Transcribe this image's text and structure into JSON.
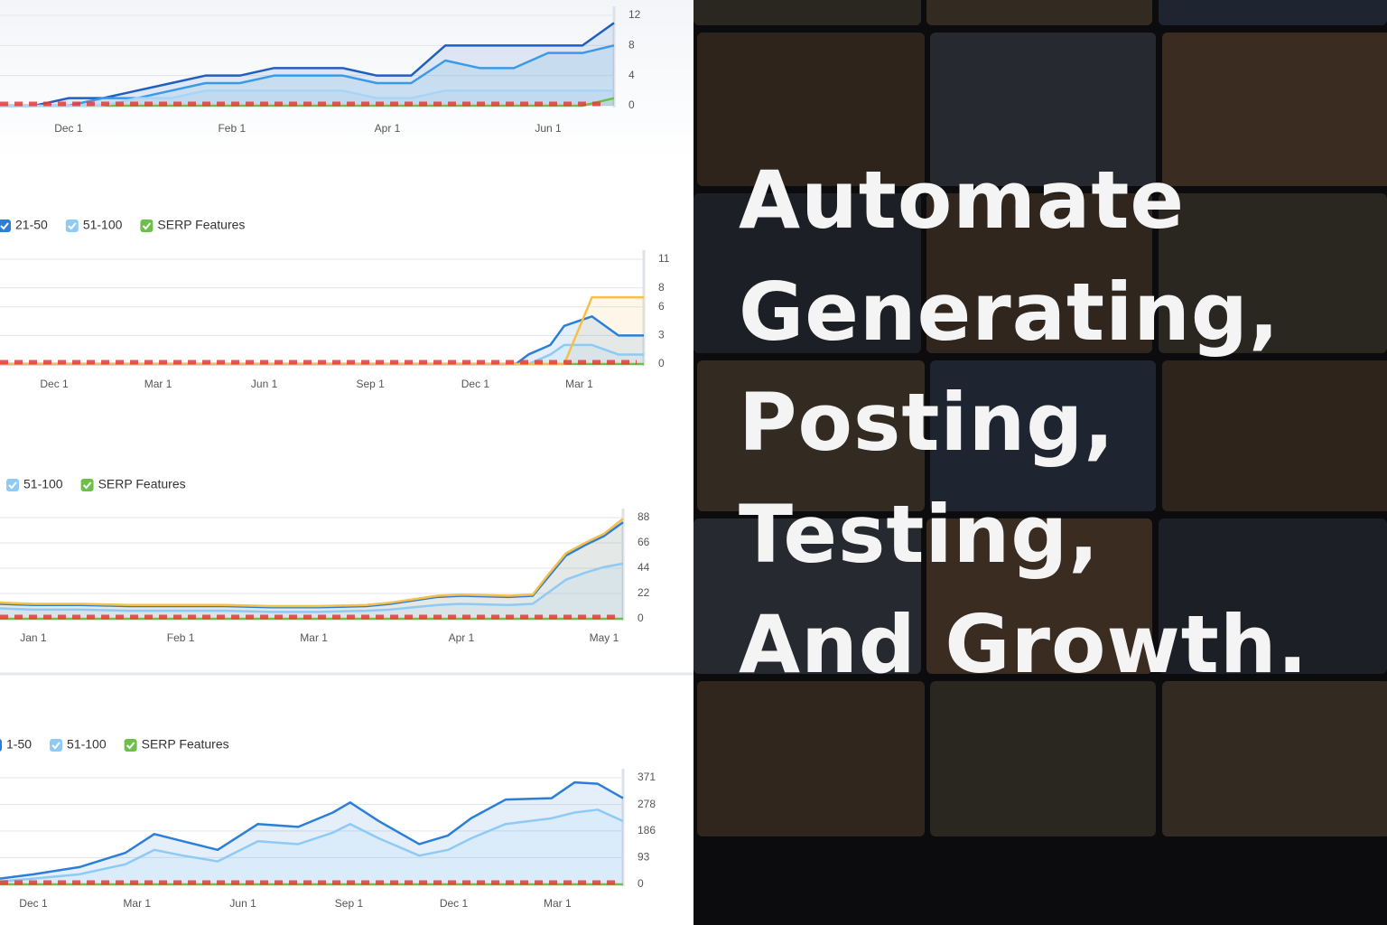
{
  "chart_data": [
    {
      "type": "line",
      "grid": true,
      "x": [
        -26,
        -13,
        0,
        13,
        26,
        39,
        52,
        65,
        78,
        91,
        104,
        117,
        130,
        143,
        156,
        169,
        182,
        195,
        207
      ],
      "xlim": [
        -26,
        207
      ],
      "xticks": [
        {
          "value": 0,
          "label": "Dec 1"
        },
        {
          "value": 62,
          "label": "Feb 1"
        },
        {
          "value": 121,
          "label": "Apr 1"
        },
        {
          "value": 182,
          "label": "Jun 1"
        }
      ],
      "ylim": [
        0,
        12
      ],
      "yticks": [
        0,
        4,
        8,
        12
      ],
      "series": [
        {
          "color": "#a9d4f5",
          "values": [
            0,
            0,
            0,
            0,
            1,
            1,
            2,
            2,
            2,
            2,
            2,
            1,
            1,
            2,
            2,
            2,
            2,
            2,
            2
          ]
        },
        {
          "color": "#3a9ae8",
          "values": [
            0,
            0,
            0,
            1,
            1,
            2,
            3,
            3,
            4,
            4,
            4,
            3,
            3,
            6,
            5,
            5,
            7,
            7,
            8
          ]
        },
        {
          "color": "#1f5fbf",
          "values": [
            0,
            0,
            1,
            1,
            2,
            3,
            4,
            4,
            5,
            5,
            5,
            4,
            4,
            8,
            8,
            8,
            8,
            8,
            11
          ]
        },
        {
          "color": "#6cc04a",
          "values": [
            0,
            0,
            0,
            0,
            0,
            0,
            0,
            0,
            0,
            0,
            0,
            0,
            0,
            0,
            0,
            0,
            0,
            0,
            1
          ]
        }
      ]
    },
    {
      "type": "line",
      "grid": true,
      "x": [
        -47,
        0,
        100,
        200,
        300,
        400,
        411,
        430,
        442,
        466,
        489,
        511
      ],
      "xlim": [
        -47,
        511
      ],
      "xticks": [
        {
          "value": 0,
          "label": "Dec 1"
        },
        {
          "value": 90,
          "label": "Mar 1"
        },
        {
          "value": 182,
          "label": "Jun 1"
        },
        {
          "value": 274,
          "label": "Sep 1"
        },
        {
          "value": 365,
          "label": "Dec 1"
        },
        {
          "value": 455,
          "label": "Mar 1"
        }
      ],
      "ylim": [
        0,
        11
      ],
      "yticks": [
        0,
        3,
        6,
        8,
        11
      ],
      "series": [
        {
          "color": "#f5c04a",
          "values": [
            0,
            0,
            0,
            0,
            0,
            0,
            0,
            0,
            0,
            7,
            7,
            7
          ]
        },
        {
          "name": "21-50",
          "color": "#2b7fd8",
          "values": [
            0,
            0,
            0,
            0,
            0,
            0,
            1,
            2,
            4,
            5,
            3,
            3
          ]
        },
        {
          "name": "51-100",
          "color": "#8fcaf5",
          "values": [
            0,
            0,
            0,
            0,
            0,
            0,
            0,
            1,
            2,
            2,
            1,
            1
          ]
        },
        {
          "name": "SERP Features",
          "color": "#6cc04a",
          "values": [
            0,
            0,
            0,
            0,
            0,
            0,
            0,
            0,
            0,
            0,
            0,
            0
          ]
        }
      ]
    },
    {
      "type": "line",
      "grid": true,
      "x": [
        -7,
        0,
        10,
        20,
        30,
        40,
        50,
        60,
        70,
        75,
        80,
        85,
        90,
        100,
        105,
        108,
        112,
        116,
        120,
        124
      ],
      "xlim": [
        -7,
        124
      ],
      "xticks": [
        {
          "value": 0,
          "label": "Jan 1"
        },
        {
          "value": 31,
          "label": "Feb 1"
        },
        {
          "value": 59,
          "label": "Mar 1"
        },
        {
          "value": 90,
          "label": "Apr 1"
        },
        {
          "value": 120,
          "label": "May 1"
        }
      ],
      "ylim": [
        0,
        88
      ],
      "yticks": [
        0,
        22,
        44,
        66,
        88
      ],
      "series": [
        {
          "color": "#f5c04a",
          "values": [
            14,
            13,
            13,
            12,
            12,
            12,
            11,
            11,
            12,
            14,
            17,
            20,
            21,
            20,
            21,
            37,
            57,
            66,
            74,
            87
          ]
        },
        {
          "color": "#2b7fd8",
          "values": [
            13,
            12,
            12,
            11,
            11,
            11,
            10,
            10,
            11,
            13,
            16,
            19,
            20,
            19,
            20,
            35,
            55,
            64,
            72,
            84
          ]
        },
        {
          "name": "51-100",
          "color": "#8fcaf5",
          "values": [
            9,
            8,
            8,
            7,
            7,
            7,
            6,
            6,
            7,
            8,
            10,
            12,
            13,
            12,
            13,
            22,
            34,
            40,
            45,
            48
          ]
        },
        {
          "name": "SERP Features",
          "color": "#6cc04a",
          "values": [
            0,
            0,
            0,
            0,
            0,
            0,
            0,
            0,
            0,
            0,
            0,
            0,
            0,
            0,
            0,
            0,
            0,
            0,
            0,
            0
          ]
        }
      ]
    },
    {
      "type": "line",
      "grid": true,
      "x": [
        -29,
        0,
        40,
        80,
        105,
        130,
        160,
        195,
        230,
        260,
        275,
        300,
        335,
        360,
        380,
        410,
        450,
        470,
        490,
        512
      ],
      "xlim": [
        -29,
        512
      ],
      "xticks": [
        {
          "value": 0,
          "label": "Dec 1"
        },
        {
          "value": 90,
          "label": "Mar 1"
        },
        {
          "value": 182,
          "label": "Jun 1"
        },
        {
          "value": 274,
          "label": "Sep 1"
        },
        {
          "value": 365,
          "label": "Dec 1"
        },
        {
          "value": 455,
          "label": "Mar 1"
        }
      ],
      "ylim": [
        0,
        371
      ],
      "yticks": [
        0,
        93,
        186,
        278,
        371
      ],
      "series": [
        {
          "name": "1-50",
          "color": "#2b7fd8",
          "values": [
            20,
            35,
            60,
            110,
            175,
            150,
            120,
            210,
            200,
            250,
            285,
            220,
            140,
            170,
            230,
            295,
            300,
            355,
            350,
            300
          ]
        },
        {
          "name": "51-100",
          "color": "#8fcaf5",
          "values": [
            10,
            20,
            35,
            70,
            120,
            100,
            80,
            150,
            140,
            180,
            210,
            160,
            100,
            120,
            160,
            210,
            230,
            250,
            260,
            220
          ]
        },
        {
          "name": "SERP Features",
          "color": "#6cc04a",
          "values": [
            0,
            0,
            0,
            0,
            0,
            0,
            0,
            0,
            0,
            0,
            0,
            0,
            0,
            0,
            0,
            0,
            0,
            0,
            0,
            0
          ]
        }
      ]
    }
  ],
  "headline": {
    "lines": [
      "Automate",
      "Generating,",
      "Posting,",
      "Testing,",
      "And Growth."
    ]
  }
}
